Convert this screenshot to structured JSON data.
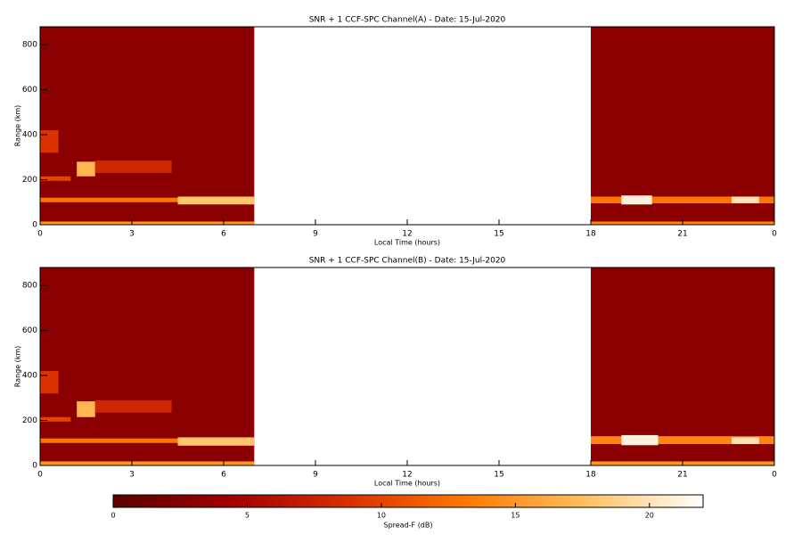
{
  "chart_data": [
    {
      "type": "heatmap",
      "title": "SNR + 1 CCF-SPC Channel(A) - Date: 15-Jul-2020",
      "x_label": "Local Time (hours)",
      "y_label": "Range (km)",
      "xlim": [
        0,
        24
      ],
      "ylim": [
        0,
        880
      ],
      "xticks": [
        0,
        3,
        6,
        9,
        12,
        15,
        18,
        21,
        {
          "value": 24,
          "label": "0"
        }
      ],
      "yticks": [
        0,
        200,
        400,
        600,
        800
      ],
      "cells": [
        {
          "x": [
            0,
            7
          ],
          "y": [
            0,
            880
          ],
          "value": 3
        },
        {
          "x": [
            18,
            24
          ],
          "y": [
            0,
            880
          ],
          "value": 3
        },
        {
          "x": [
            0,
            7
          ],
          "y": [
            0,
            14
          ],
          "value": 15
        },
        {
          "x": [
            18,
            24
          ],
          "y": [
            0,
            14
          ],
          "value": 14
        },
        {
          "x": [
            0,
            4.5
          ],
          "y": [
            100,
            120
          ],
          "value": 13
        },
        {
          "x": [
            4.5,
            7
          ],
          "y": [
            90,
            125
          ],
          "value": 18
        },
        {
          "x": [
            0,
            0.6
          ],
          "y": [
            320,
            420
          ],
          "value": 9
        },
        {
          "x": [
            0,
            1
          ],
          "y": [
            195,
            215
          ],
          "value": 10
        },
        {
          "x": [
            1.2,
            1.8
          ],
          "y": [
            215,
            280
          ],
          "value": 17
        },
        {
          "x": [
            1.8,
            4.3
          ],
          "y": [
            230,
            285
          ],
          "value": 8
        },
        {
          "x": [
            18,
            24
          ],
          "y": [
            95,
            125
          ],
          "value": 13
        },
        {
          "x": [
            19,
            20
          ],
          "y": [
            90,
            130
          ],
          "value": 21
        },
        {
          "x": [
            22.6,
            23.5
          ],
          "y": [
            95,
            125
          ],
          "value": 20
        }
      ]
    },
    {
      "type": "heatmap",
      "title": "SNR + 1 CCF-SPC Channel(B) - Date: 15-Jul-2020",
      "x_label": "Local Time (hours)",
      "y_label": "Range (km)",
      "xlim": [
        0,
        24
      ],
      "ylim": [
        0,
        880
      ],
      "xticks": [
        0,
        3,
        6,
        9,
        12,
        15,
        18,
        21,
        {
          "value": 24,
          "label": "0"
        }
      ],
      "yticks": [
        0,
        200,
        400,
        600,
        800
      ],
      "cells": [
        {
          "x": [
            0,
            7
          ],
          "y": [
            0,
            880
          ],
          "value": 3
        },
        {
          "x": [
            18,
            24
          ],
          "y": [
            0,
            880
          ],
          "value": 3
        },
        {
          "x": [
            0,
            7
          ],
          "y": [
            0,
            18
          ],
          "value": 15
        },
        {
          "x": [
            18,
            24
          ],
          "y": [
            0,
            18
          ],
          "value": 15
        },
        {
          "x": [
            0,
            4.5
          ],
          "y": [
            100,
            120
          ],
          "value": 13
        },
        {
          "x": [
            4.5,
            7
          ],
          "y": [
            88,
            125
          ],
          "value": 18
        },
        {
          "x": [
            0,
            0.6
          ],
          "y": [
            320,
            420
          ],
          "value": 9
        },
        {
          "x": [
            0,
            1
          ],
          "y": [
            195,
            215
          ],
          "value": 10
        },
        {
          "x": [
            1.2,
            1.8
          ],
          "y": [
            215,
            285
          ],
          "value": 17
        },
        {
          "x": [
            1.8,
            4.3
          ],
          "y": [
            235,
            290
          ],
          "value": 8
        },
        {
          "x": [
            18,
            24
          ],
          "y": [
            95,
            130
          ],
          "value": 14
        },
        {
          "x": [
            19,
            20.2
          ],
          "y": [
            90,
            135
          ],
          "value": 21
        },
        {
          "x": [
            22.6,
            23.5
          ],
          "y": [
            95,
            125
          ],
          "value": 20
        }
      ]
    }
  ],
  "colorbar": {
    "label": "Spread-F (dB)",
    "lim": [
      0,
      22
    ],
    "ticks": [
      0,
      5,
      10,
      15,
      20
    ],
    "colormap": [
      "#5a0000",
      "#a00000",
      "#d83000",
      "#ff7a00",
      "#ffc060",
      "#ffffff"
    ]
  }
}
